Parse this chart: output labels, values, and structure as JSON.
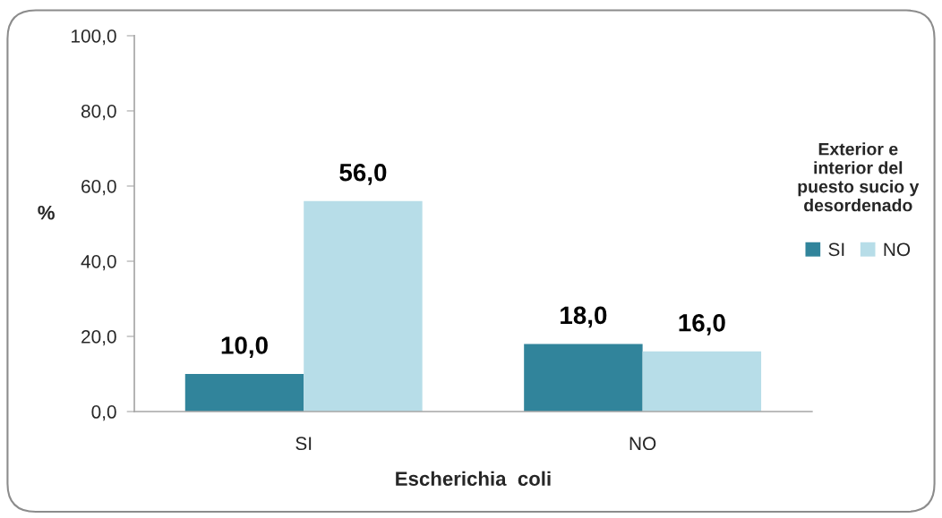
{
  "chart_data": {
    "type": "bar",
    "xlabel": "Escherichia  coli",
    "ylabel": "%",
    "legend_title": "Exterior e\ninterior del\npuesto sucio y\ndesordenado",
    "categories": [
      "SI",
      "NO"
    ],
    "series": [
      {
        "name": "SI",
        "color": "#31849b",
        "values": [
          10.0,
          18.0
        ],
        "value_labels": [
          "10,0",
          "18,0"
        ]
      },
      {
        "name": "NO",
        "color": "#b7dde8",
        "values": [
          56.0,
          16.0
        ],
        "value_labels": [
          "56,0",
          "16,0"
        ]
      }
    ],
    "ylim": [
      0,
      100
    ],
    "yticks": [
      {
        "value": 0,
        "label": "0,0"
      },
      {
        "value": 20,
        "label": "20,0"
      },
      {
        "value": 40,
        "label": "40,0"
      },
      {
        "value": 60,
        "label": "60,0"
      },
      {
        "value": 80,
        "label": "80,0"
      },
      {
        "value": 100,
        "label": "100,0"
      }
    ],
    "grid": false,
    "legend": "right"
  }
}
